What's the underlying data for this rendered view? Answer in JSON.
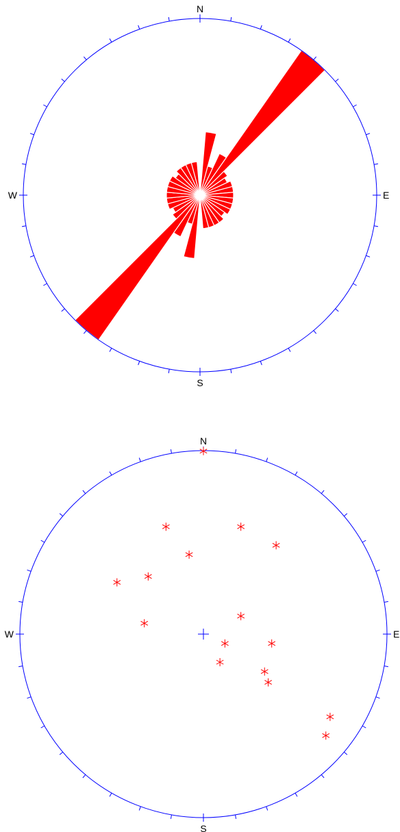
{
  "chart_data": [
    {
      "type": "rose",
      "direction_labels": [
        "N",
        "E",
        "S",
        "W"
      ],
      "tick_interval_deg": 10,
      "grid": false,
      "bin_width_deg": 10,
      "bins": [
        {
          "azimuth": 10,
          "value": 0.36
        },
        {
          "azimuth": 20,
          "value": 0.17
        },
        {
          "azimuth": 30,
          "value": 0.26
        },
        {
          "azimuth": 40,
          "value": 1.0
        },
        {
          "azimuth": 50,
          "value": 0.19
        },
        {
          "azimuth": 60,
          "value": 0.17
        },
        {
          "azimuth": 70,
          "value": 0.19
        },
        {
          "azimuth": 80,
          "value": 0.19
        },
        {
          "azimuth": 90,
          "value": 0.19
        },
        {
          "azimuth": 100,
          "value": 0.19
        },
        {
          "azimuth": 110,
          "value": 0.19
        },
        {
          "azimuth": 120,
          "value": 0.19
        },
        {
          "azimuth": 130,
          "value": 0.17
        },
        {
          "azimuth": 140,
          "value": 0.19
        },
        {
          "azimuth": 150,
          "value": 0.19
        },
        {
          "azimuth": 160,
          "value": 0.19
        },
        {
          "azimuth": 170,
          "value": 0.19
        },
        {
          "azimuth": 180,
          "value": 0.0
        },
        {
          "azimuth": 190,
          "value": 0.36
        },
        {
          "azimuth": 200,
          "value": 0.17
        },
        {
          "azimuth": 210,
          "value": 0.26
        },
        {
          "azimuth": 220,
          "value": 1.0
        },
        {
          "azimuth": 230,
          "value": 0.19
        },
        {
          "azimuth": 240,
          "value": 0.17
        },
        {
          "azimuth": 250,
          "value": 0.19
        },
        {
          "azimuth": 260,
          "value": 0.19
        },
        {
          "azimuth": 270,
          "value": 0.19
        },
        {
          "azimuth": 280,
          "value": 0.19
        },
        {
          "azimuth": 290,
          "value": 0.19
        },
        {
          "azimuth": 300,
          "value": 0.19
        },
        {
          "azimuth": 310,
          "value": 0.17
        },
        {
          "azimuth": 320,
          "value": 0.19
        },
        {
          "azimuth": 330,
          "value": 0.19
        },
        {
          "azimuth": 340,
          "value": 0.19
        },
        {
          "azimuth": 350,
          "value": 0.19
        },
        {
          "azimuth": 360,
          "value": 0.0
        }
      ],
      "colors": {
        "frame": "#0000ff",
        "petal": "#ff0000",
        "text": "#000000"
      }
    },
    {
      "type": "scatter",
      "subtype": "stereonet",
      "direction_labels": [
        "N",
        "E",
        "S",
        "W"
      ],
      "tick_interval_deg": 10,
      "grid": false,
      "center_marker": "cross",
      "points": [
        {
          "x": 0.0,
          "y": 0.997
        },
        {
          "x": -0.204,
          "y": 0.585
        },
        {
          "x": 0.204,
          "y": 0.585
        },
        {
          "x": -0.078,
          "y": 0.433
        },
        {
          "x": 0.396,
          "y": 0.484
        },
        {
          "x": -0.301,
          "y": 0.314
        },
        {
          "x": -0.471,
          "y": 0.282
        },
        {
          "x": 0.204,
          "y": 0.098
        },
        {
          "x": -0.322,
          "y": 0.059
        },
        {
          "x": 0.117,
          "y": -0.051
        },
        {
          "x": 0.372,
          "y": -0.051
        },
        {
          "x": 0.09,
          "y": -0.153
        },
        {
          "x": 0.333,
          "y": -0.204
        },
        {
          "x": 0.353,
          "y": -0.263
        },
        {
          "x": 0.69,
          "y": -0.451
        },
        {
          "x": 0.667,
          "y": -0.553
        }
      ],
      "colors": {
        "frame": "#0000ff",
        "points": "#ff0000",
        "center": "#0000ff",
        "text": "#000000"
      }
    }
  ]
}
